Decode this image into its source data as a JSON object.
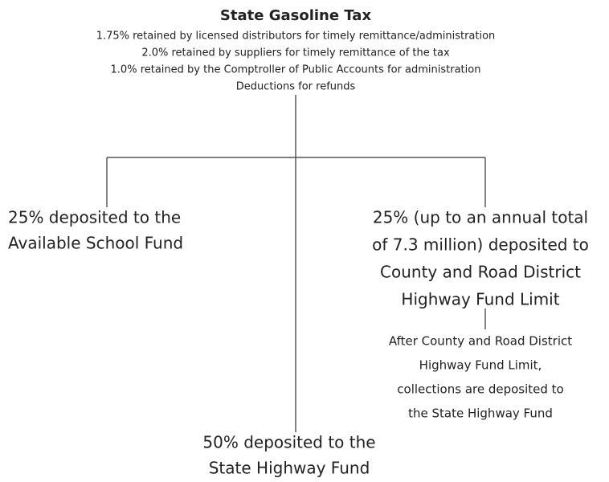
{
  "title": "State Gasoline Tax",
  "deductions": [
    "1.75% retained by licensed distributors for timely remittance/administration",
    "2.0% retained by suppliers for timely remittance of the tax",
    "1.0% retained by the Comptroller of Public Accounts for administration",
    "Deductions for refunds"
  ],
  "nodes": [
    {
      "lines": [
        "25% deposited to the",
        "Available School Fund"
      ]
    },
    {
      "lines": [
        "25% (up to an annual total",
        "of  7.3 million) deposited to",
        "County and Road District",
        "Highway Fund Limit"
      ]
    },
    {
      "lines": [
        "After County and Road District",
        "Highway Fund Limit,",
        "collections are deposited to",
        "the State Highway Fund"
      ]
    },
    {
      "lines": [
        "50% deposited to the",
        "State Highway Fund"
      ]
    }
  ]
}
